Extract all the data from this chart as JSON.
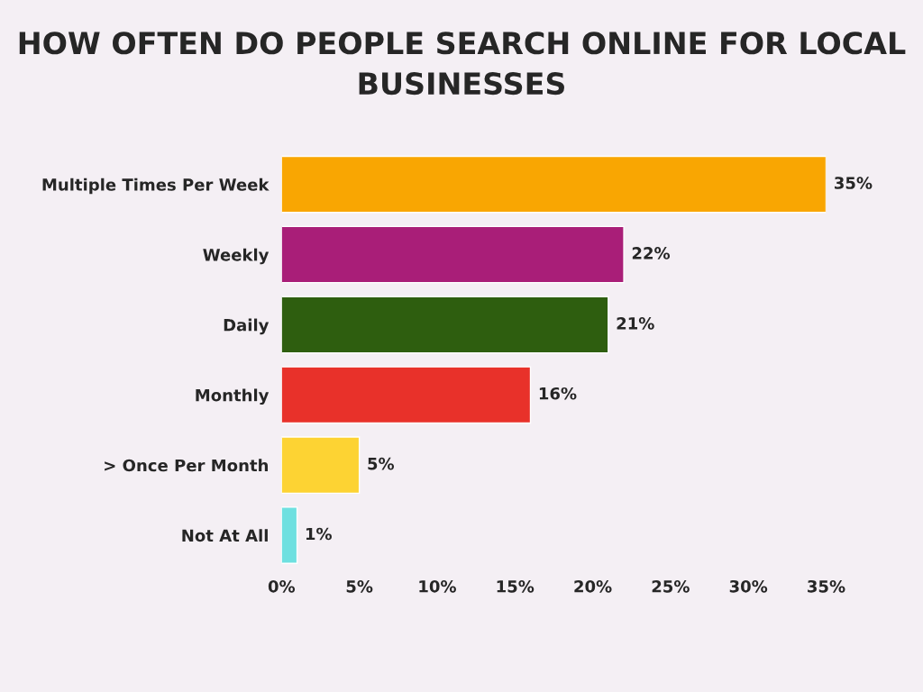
{
  "chart_data": {
    "type": "bar",
    "orientation": "horizontal",
    "title": "HOW OFTEN DO PEOPLE SEARCH ONLINE FOR LOCAL BUSINESSES",
    "categories": [
      "Multiple Times Per Week",
      "Weekly",
      "Daily",
      "Monthly",
      "> Once Per Month",
      "Not At All"
    ],
    "values": [
      35,
      22,
      21,
      16,
      5,
      1
    ],
    "colors": [
      "#f9a602",
      "#a91e78",
      "#2e5e0f",
      "#e8312a",
      "#fdd333",
      "#6ee0e0"
    ],
    "value_labels": [
      "35%",
      "22%",
      "21%",
      "16%",
      "5%",
      "1%"
    ],
    "xlim": [
      0,
      35
    ],
    "xticks": [
      {
        "value": 0,
        "label": "0%"
      },
      {
        "value": 5,
        "label": "5%"
      },
      {
        "value": 10,
        "label": "10%"
      },
      {
        "value": 15,
        "label": "15%"
      },
      {
        "value": 20,
        "label": "20%"
      },
      {
        "value": 25,
        "label": "25%"
      },
      {
        "value": 30,
        "label": "30%"
      },
      {
        "value": 35,
        "label": "35%"
      }
    ],
    "grid": false,
    "legend": false
  }
}
